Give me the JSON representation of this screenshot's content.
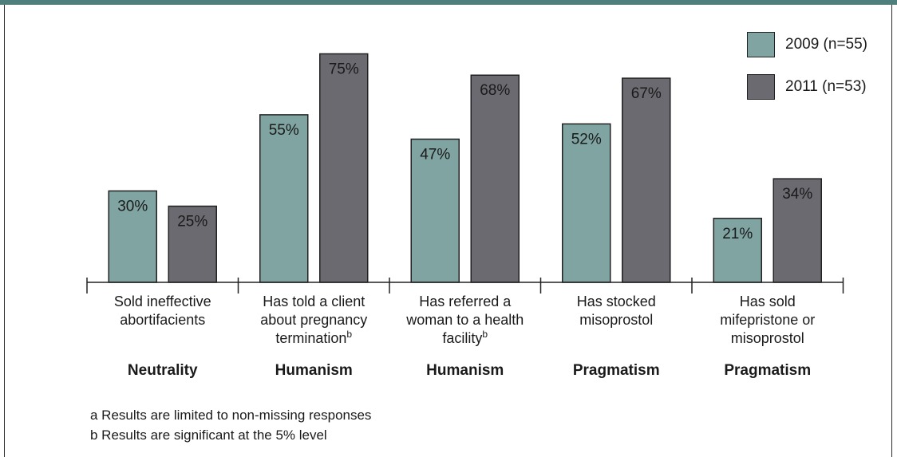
{
  "chart_data": {
    "type": "bar",
    "categories": [
      {
        "lines": [
          "Sold ineffective",
          "abortifacients"
        ],
        "sup": "",
        "group": "Neutrality"
      },
      {
        "lines": [
          "Has told a client",
          "about pregnancy",
          "termination"
        ],
        "sup": "b",
        "group": "Humanism"
      },
      {
        "lines": [
          "Has referred a",
          "woman to a health",
          "facility"
        ],
        "sup": "b",
        "group": "Humanism"
      },
      {
        "lines": [
          "Has stocked",
          "misoprostol"
        ],
        "sup": "",
        "group": "Pragmatism"
      },
      {
        "lines": [
          "Has sold",
          "mifepristone or",
          "misoprostol"
        ],
        "sup": "",
        "group": "Pragmatism"
      }
    ],
    "series": [
      {
        "name": "2009 (n=55)",
        "color": "#7fa4a2",
        "values": [
          30,
          55,
          47,
          52,
          21
        ]
      },
      {
        "name": "2011 (n=53)",
        "color": "#6a6a70",
        "values": [
          25,
          75,
          68,
          67,
          34
        ]
      }
    ],
    "value_suffix": "%",
    "ylim": [
      0,
      100
    ],
    "legend_position": "top-right",
    "grid": false
  },
  "notes": [
    "a Results are limited to non-missing responses",
    "b Results are significant at the 5% level"
  ]
}
